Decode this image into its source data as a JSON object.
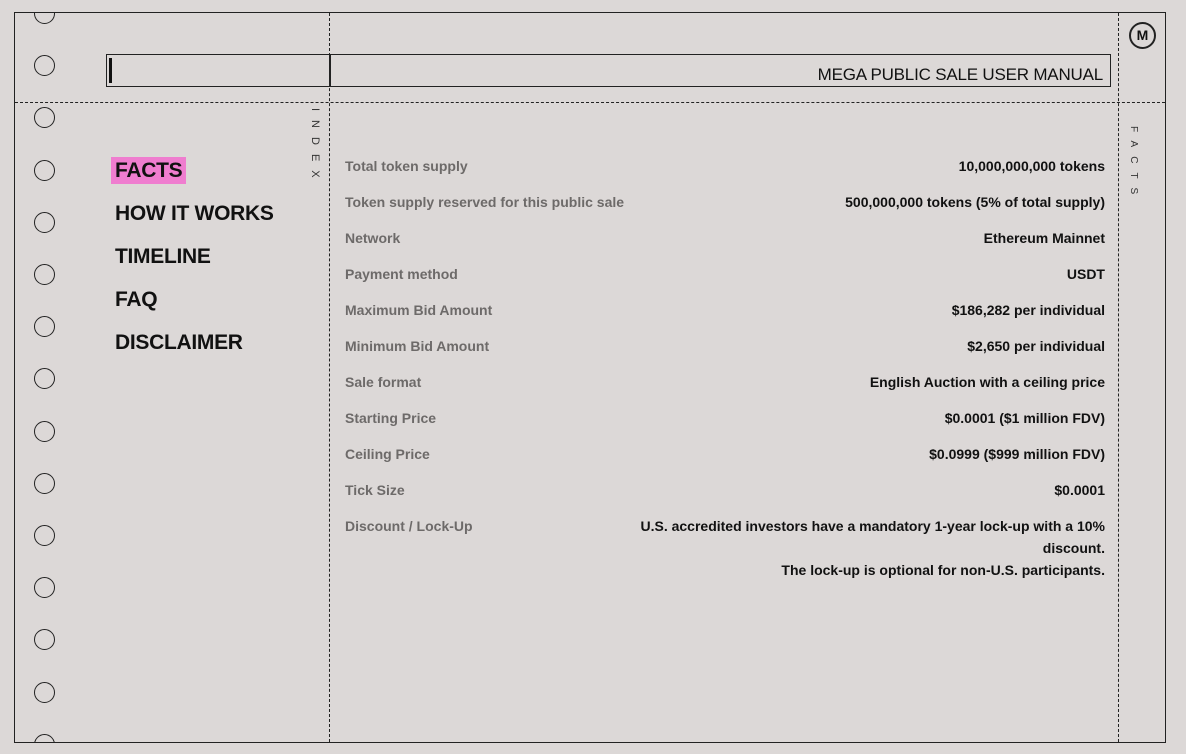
{
  "header": {
    "title": "MEGA PUBLIC SALE USER MANUAL",
    "logo_letter": "M"
  },
  "side_labels": {
    "left": "INDEX",
    "right": "FACTS"
  },
  "nav": {
    "items": [
      {
        "label": "FACTS",
        "active": true
      },
      {
        "label": "HOW IT WORKS"
      },
      {
        "label": "TIMELINE"
      },
      {
        "label": "FAQ"
      },
      {
        "label": "DISCLAIMER"
      }
    ]
  },
  "colors": {
    "highlight": "#ef7dcf",
    "background": "#dcd8d7"
  },
  "facts": [
    {
      "label": "Total token supply",
      "value": "10,000,000,000 tokens"
    },
    {
      "label": "Token supply reserved for this public sale",
      "value": "500,000,000 tokens (5% of total supply)"
    },
    {
      "label": "Network",
      "value": "Ethereum Mainnet"
    },
    {
      "label": "Payment method",
      "value": "USDT"
    },
    {
      "label": "Maximum Bid Amount",
      "value": "$186,282 per individual"
    },
    {
      "label": "Minimum Bid Amount",
      "value": "$2,650 per individual"
    },
    {
      "label": "Sale format",
      "value": "English Auction with a ceiling price"
    },
    {
      "label": "Starting Price",
      "value": "$0.0001 ($1 million FDV)"
    },
    {
      "label": "Ceiling Price",
      "value": "$0.0999 ($999 million FDV)"
    },
    {
      "label": "Tick Size",
      "value": "$0.0001"
    },
    {
      "label": "Discount / Lock-Up",
      "value": "U.S. accredited investors have a mandatory 1-year lock-up with a 10% discount.",
      "value2": "The lock-up is optional for non-U.S. participants."
    }
  ]
}
